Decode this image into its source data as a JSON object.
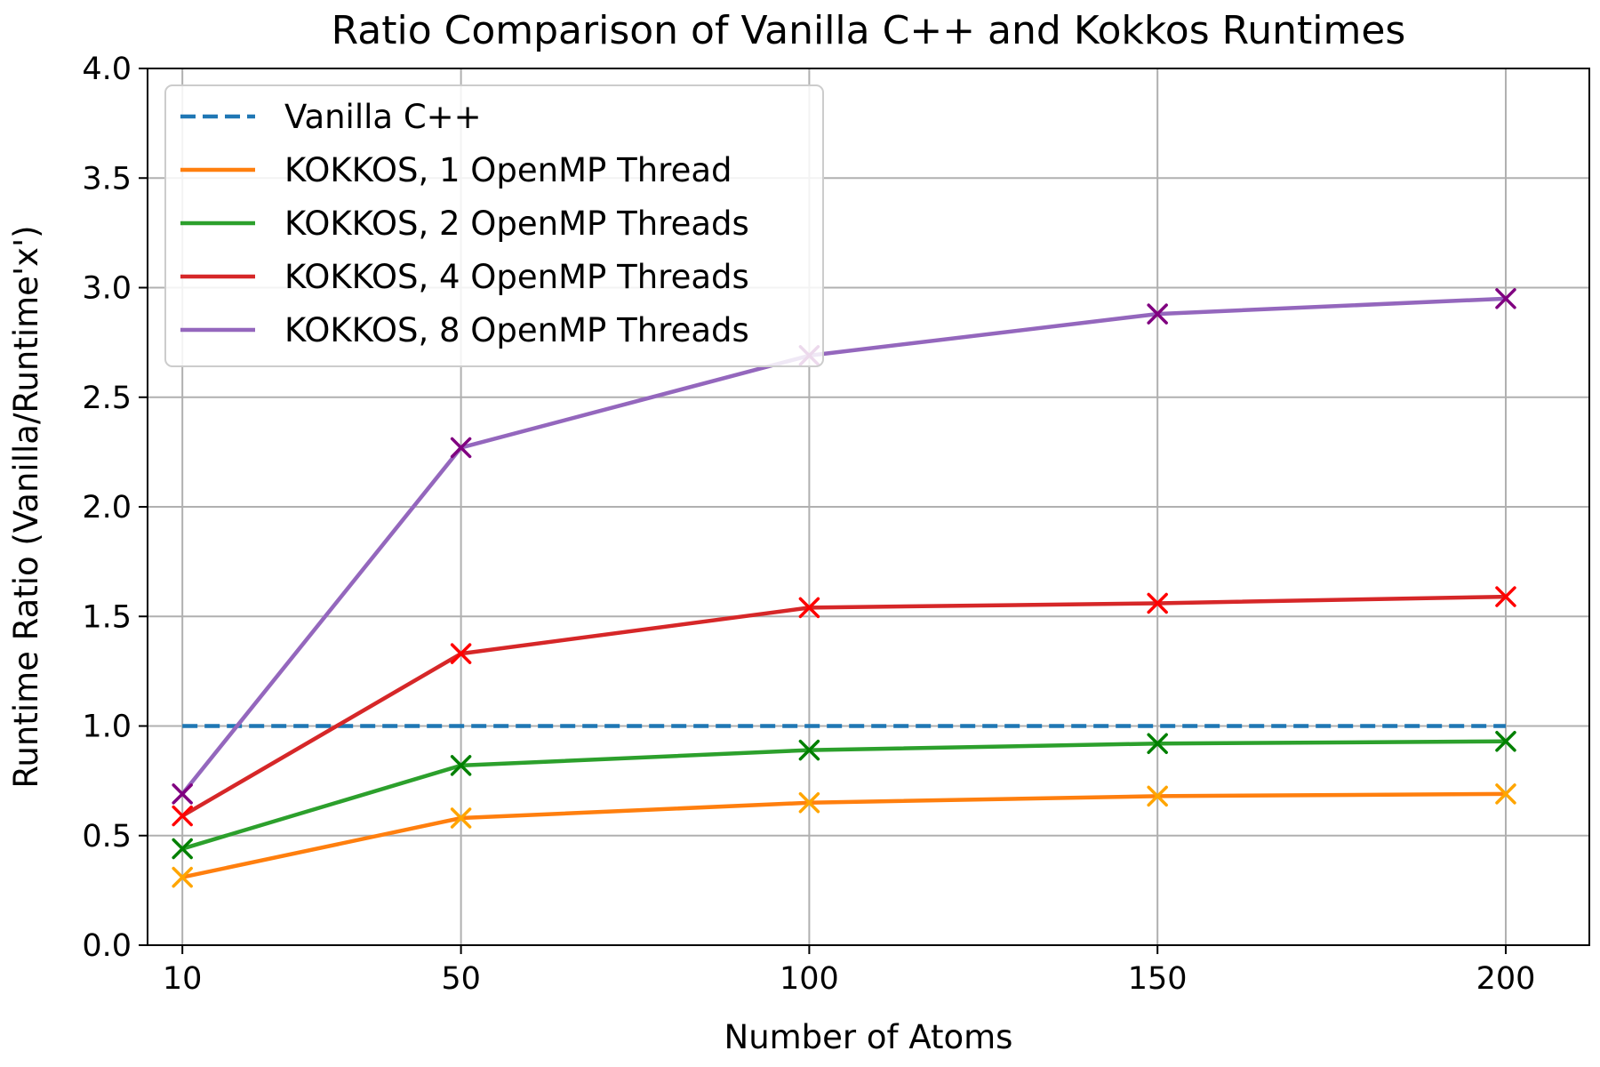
{
  "chart_data": {
    "type": "line",
    "title": "Ratio Comparison of Vanilla C++ and Kokkos Runtimes",
    "xlabel": "Number of Atoms",
    "ylabel": "Runtime Ratio (Vanilla/Runtime'x')",
    "x": [
      10,
      50,
      100,
      150,
      200
    ],
    "x_tick_labels": [
      "10",
      "50",
      "100",
      "150",
      "200"
    ],
    "ylim": [
      0,
      4.0
    ],
    "y_tick_labels": [
      "0.0",
      "0.5",
      "1.0",
      "1.5",
      "2.0",
      "2.5",
      "3.0",
      "3.5",
      "4.0"
    ],
    "grid": true,
    "legend_position": "top-left",
    "series": [
      {
        "name": "Vanilla C++",
        "values": [
          1.0,
          1.0,
          1.0,
          1.0,
          1.0
        ],
        "color": "#1f77b4",
        "dashed": true,
        "markers": false
      },
      {
        "name": "KOKKOS, 1 OpenMP Thread",
        "values": [
          0.31,
          0.58,
          0.65,
          0.68,
          0.69
        ],
        "color": "#ff7f0e",
        "marker_color": "#ffa500",
        "dashed": false,
        "markers": true
      },
      {
        "name": "KOKKOS, 2 OpenMP Threads",
        "values": [
          0.44,
          0.82,
          0.89,
          0.92,
          0.93
        ],
        "color": "#2ca02c",
        "marker_color": "#008000",
        "dashed": false,
        "markers": true
      },
      {
        "name": "KOKKOS, 4 OpenMP Threads",
        "values": [
          0.59,
          1.33,
          1.54,
          1.56,
          1.59
        ],
        "color": "#d62728",
        "marker_color": "#ff0000",
        "dashed": false,
        "markers": true
      },
      {
        "name": "KOKKOS, 8 OpenMP Threads",
        "values": [
          0.69,
          2.27,
          2.69,
          2.88,
          2.95
        ],
        "color": "#9467bd",
        "marker_color": "#800080",
        "dashed": false,
        "markers": true
      }
    ]
  }
}
